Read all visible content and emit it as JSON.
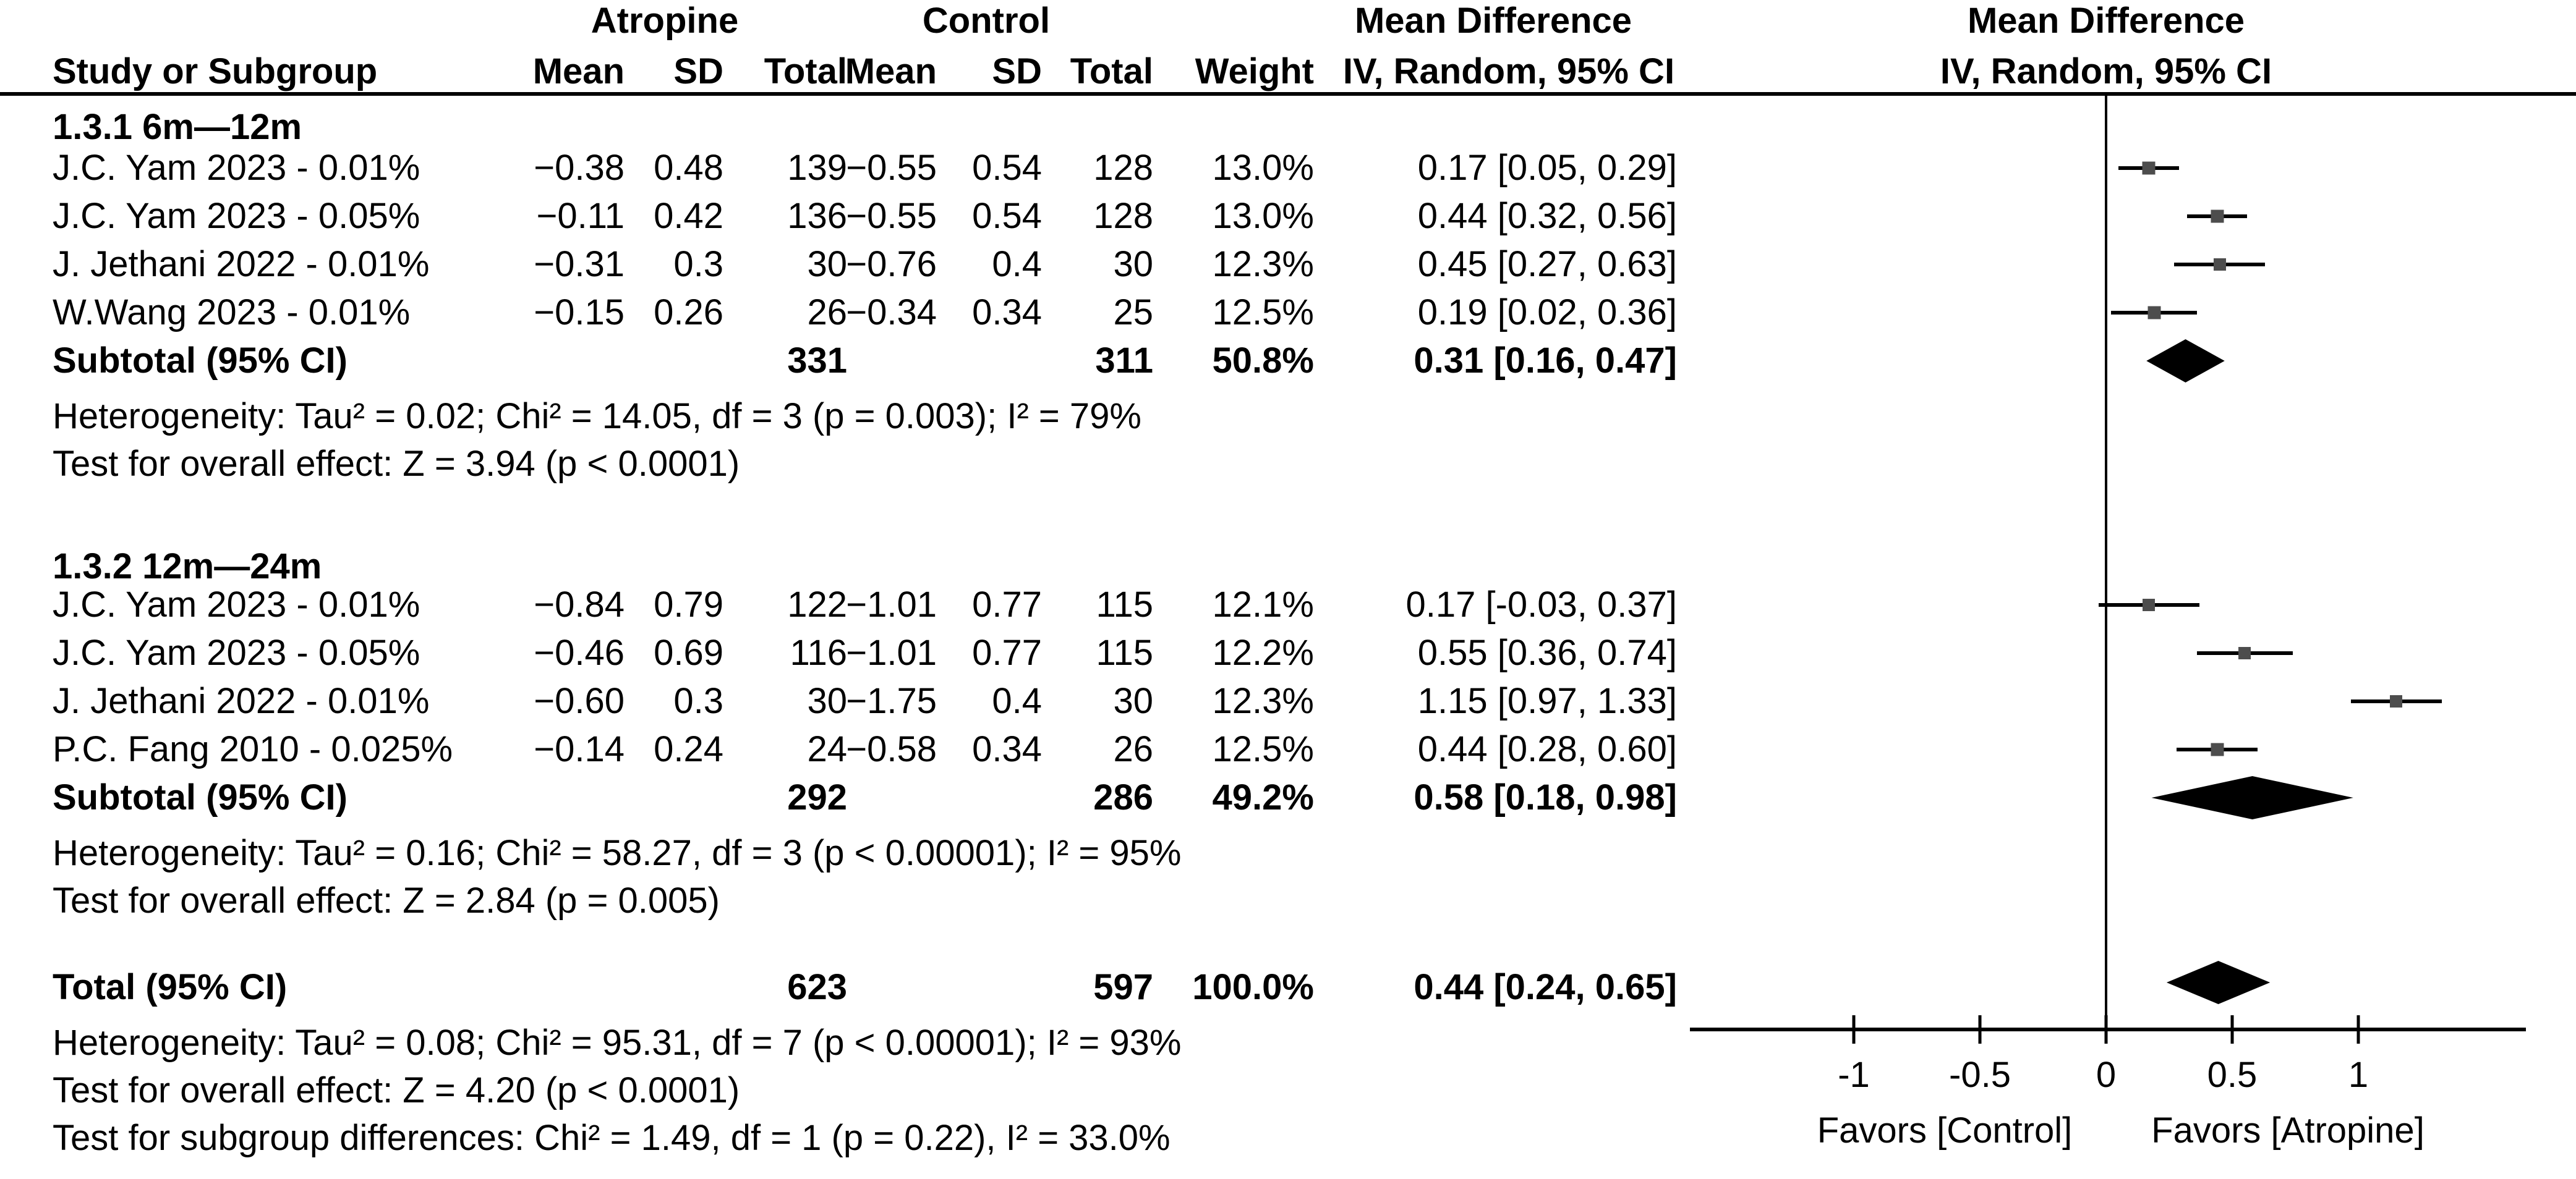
{
  "header": {
    "study_col": "Study or Subgroup",
    "group1": "Atropine",
    "group2": "Control",
    "md_text_col_line1": "Mean Difference",
    "md_text_col_line2": "IV, Random, 95% CI",
    "md_plot_col_line1": "Mean Difference",
    "md_plot_col_line2": "IV, Random, 95% CI",
    "numeric_cols": [
      "Mean",
      "SD",
      "Total",
      "Mean",
      "SD",
      "Total",
      "Weight"
    ]
  },
  "sections": [
    {
      "label": "1.3.1 6m—12m",
      "studies": [
        {
          "name": "J.C. Yam 2023 - 0.01%",
          "mean1": "−0.38",
          "sd1": "0.48",
          "total1": "139",
          "mean2": "−0.55",
          "sd2": "0.54",
          "total2": "128",
          "weight": "13.0%",
          "ci_text": "0.17 [0.05, 0.29]"
        },
        {
          "name": "J.C. Yam 2023 - 0.05%",
          "mean1": "−0.11",
          "sd1": "0.42",
          "total1": "136",
          "mean2": "−0.55",
          "sd2": "0.54",
          "total2": "128",
          "weight": "13.0%",
          "ci_text": "0.44 [0.32, 0.56]"
        },
        {
          "name": "J. Jethani 2022 - 0.01%",
          "mean1": "−0.31",
          "sd1": "0.3",
          "total1": "30",
          "mean2": "−0.76",
          "sd2": "0.4",
          "total2": "30",
          "weight": "12.3%",
          "ci_text": "0.45 [0.27, 0.63]"
        },
        {
          "name": "W.Wang 2023 - 0.01%",
          "mean1": "−0.15",
          "sd1": "0.26",
          "total1": "26",
          "mean2": "−0.34",
          "sd2": "0.34",
          "total2": "25",
          "weight": "12.5%",
          "ci_text": "0.19 [0.02, 0.36]"
        }
      ],
      "subtotal": {
        "label": "Subtotal (95% CI)",
        "total1": "331",
        "total2": "311",
        "weight": "50.8%",
        "ci_text": "0.31 [0.16, 0.47]"
      },
      "heterogeneity": "Heterogeneity: Tau² = 0.02; Chi² = 14.05, df = 3 (p = 0.003); I² = 79%",
      "overall_effect": "Test for overall effect: Z = 3.94 (p < 0.0001)"
    },
    {
      "label": "1.3.2 12m—24m",
      "studies": [
        {
          "name": "J.C. Yam 2023 - 0.01%",
          "mean1": "−0.84",
          "sd1": "0.79",
          "total1": "122",
          "mean2": "−1.01",
          "sd2": "0.77",
          "total2": "115",
          "weight": "12.1%",
          "ci_text": "0.17 [-0.03, 0.37]"
        },
        {
          "name": "J.C. Yam 2023 - 0.05%",
          "mean1": "−0.46",
          "sd1": "0.69",
          "total1": "116",
          "mean2": "−1.01",
          "sd2": "0.77",
          "total2": "115",
          "weight": "12.2%",
          "ci_text": "0.55 [0.36, 0.74]"
        },
        {
          "name": "J. Jethani 2022 - 0.01%",
          "mean1": "−0.60",
          "sd1": "0.3",
          "total1": "30",
          "mean2": "−1.75",
          "sd2": "0.4",
          "total2": "30",
          "weight": "12.3%",
          "ci_text": "1.15 [0.97, 1.33]"
        },
        {
          "name": "P.C. Fang 2010 - 0.025%",
          "mean1": "−0.14",
          "sd1": "0.24",
          "total1": "24",
          "mean2": "−0.58",
          "sd2": "0.34",
          "total2": "26",
          "weight": "12.5%",
          "ci_text": "0.44 [0.28, 0.60]"
        }
      ],
      "subtotal": {
        "label": "Subtotal (95% CI)",
        "total1": "292",
        "total2": "286",
        "weight": "49.2%",
        "ci_text": "0.58 [0.18, 0.98]"
      },
      "heterogeneity": "Heterogeneity: Tau² = 0.16; Chi² = 58.27, df = 3 (p < 0.00001); I² = 95%",
      "overall_effect": "Test for overall effect: Z = 2.84 (p = 0.005)"
    }
  ],
  "total": {
    "label": "Total (95% CI)",
    "total1": "623",
    "total2": "597",
    "weight": "100.0%",
    "ci_text": "0.44 [0.24, 0.65]",
    "heterogeneity": "Heterogeneity: Tau² = 0.08; Chi² = 95.31, df = 7 (p < 0.00001); I² = 93%",
    "overall_effect": "Test for overall effect: Z = 4.20 (p < 0.0001)",
    "subgroup_differences": "Test for subgroup differences: Chi² = 1.49, df = 1 (p = 0.22), I² = 33.0%"
  },
  "axis": {
    "tick_labels": [
      "-1",
      "-0.5",
      "0",
      "0.5",
      "1"
    ],
    "favors_left": "Favors [Control]",
    "favors_right": "Favors [Atropine]"
  },
  "colors": {
    "square": "#4d4d4d",
    "ci_line": "#000000",
    "diamond": "#000000",
    "text": "#000000",
    "background": "#ffffff"
  },
  "chart_data": {
    "type": "scatter",
    "subtype": "forest-plot",
    "title": "Mean Difference",
    "effect_measure": "IV, Random, 95% CI",
    "xlabel_left": "Favors [Control]",
    "xlabel_right": "Favors [Atropine]",
    "xlim": [
      -1.65,
      1.66
    ],
    "x_ticks": [
      -1,
      -0.5,
      0,
      0.5,
      1
    ],
    "grid": false,
    "subgroups": [
      {
        "name": "1.3.1 6m—12m",
        "studies": [
          {
            "label": "J.C. Yam 2023 - 0.01%",
            "atropine": {
              "mean": -0.38,
              "sd": 0.48,
              "total": 139
            },
            "control": {
              "mean": -0.55,
              "sd": 0.54,
              "total": 128
            },
            "weight_pct": 13.0,
            "md": 0.17,
            "ci": [
              0.05,
              0.29
            ]
          },
          {
            "label": "J.C. Yam 2023 - 0.05%",
            "atropine": {
              "mean": -0.11,
              "sd": 0.42,
              "total": 136
            },
            "control": {
              "mean": -0.55,
              "sd": 0.54,
              "total": 128
            },
            "weight_pct": 13.0,
            "md": 0.44,
            "ci": [
              0.32,
              0.56
            ]
          },
          {
            "label": "J. Jethani 2022 - 0.01%",
            "atropine": {
              "mean": -0.31,
              "sd": 0.3,
              "total": 30
            },
            "control": {
              "mean": -0.76,
              "sd": 0.4,
              "total": 30
            },
            "weight_pct": 12.3,
            "md": 0.45,
            "ci": [
              0.27,
              0.63
            ]
          },
          {
            "label": "W.Wang 2023 - 0.01%",
            "atropine": {
              "mean": -0.15,
              "sd": 0.26,
              "total": 26
            },
            "control": {
              "mean": -0.34,
              "sd": 0.34,
              "total": 25
            },
            "weight_pct": 12.5,
            "md": 0.19,
            "ci": [
              0.02,
              0.36
            ]
          }
        ],
        "subtotal": {
          "total_atropine": 331,
          "total_control": 311,
          "weight_pct": 50.8,
          "md": 0.31,
          "ci": [
            0.16,
            0.47
          ]
        },
        "heterogeneity": {
          "tau2": 0.02,
          "chi2": 14.05,
          "df": 3,
          "p": "0.003",
          "i2_pct": 79
        },
        "overall_effect": {
          "z": 3.94,
          "p": "< 0.0001"
        }
      },
      {
        "name": "1.3.2 12m—24m",
        "studies": [
          {
            "label": "J.C. Yam 2023 - 0.01%",
            "atropine": {
              "mean": -0.84,
              "sd": 0.79,
              "total": 122
            },
            "control": {
              "mean": -1.01,
              "sd": 0.77,
              "total": 115
            },
            "weight_pct": 12.1,
            "md": 0.17,
            "ci": [
              -0.03,
              0.37
            ]
          },
          {
            "label": "J.C. Yam 2023 - 0.05%",
            "atropine": {
              "mean": -0.46,
              "sd": 0.69,
              "total": 116
            },
            "control": {
              "mean": -1.01,
              "sd": 0.77,
              "total": 115
            },
            "weight_pct": 12.2,
            "md": 0.55,
            "ci": [
              0.36,
              0.74
            ]
          },
          {
            "label": "J. Jethani 2022 - 0.01%",
            "atropine": {
              "mean": -0.6,
              "sd": 0.3,
              "total": 30
            },
            "control": {
              "mean": -1.75,
              "sd": 0.4,
              "total": 30
            },
            "weight_pct": 12.3,
            "md": 1.15,
            "ci": [
              0.97,
              1.33
            ]
          },
          {
            "label": "P.C. Fang 2010 - 0.025%",
            "atropine": {
              "mean": -0.14,
              "sd": 0.24,
              "total": 24
            },
            "control": {
              "mean": -0.58,
              "sd": 0.34,
              "total": 26
            },
            "weight_pct": 12.5,
            "md": 0.44,
            "ci": [
              0.28,
              0.6
            ]
          }
        ],
        "subtotal": {
          "total_atropine": 292,
          "total_control": 286,
          "weight_pct": 49.2,
          "md": 0.58,
          "ci": [
            0.18,
            0.98
          ]
        },
        "heterogeneity": {
          "tau2": 0.16,
          "chi2": 58.27,
          "df": 3,
          "p": "< 0.00001",
          "i2_pct": 95
        },
        "overall_effect": {
          "z": 2.84,
          "p": "0.005"
        }
      }
    ],
    "total": {
      "total_atropine": 623,
      "total_control": 597,
      "weight_pct": 100.0,
      "md": 0.44,
      "ci": [
        0.24,
        0.65
      ],
      "heterogeneity": {
        "tau2": 0.08,
        "chi2": 95.31,
        "df": 7,
        "p": "< 0.00001",
        "i2_pct": 93
      },
      "overall_effect": {
        "z": 4.2,
        "p": "< 0.0001"
      },
      "subgroup_differences": {
        "chi2": 1.49,
        "df": 1,
        "p": "0.22",
        "i2_pct": 33.0
      }
    }
  }
}
